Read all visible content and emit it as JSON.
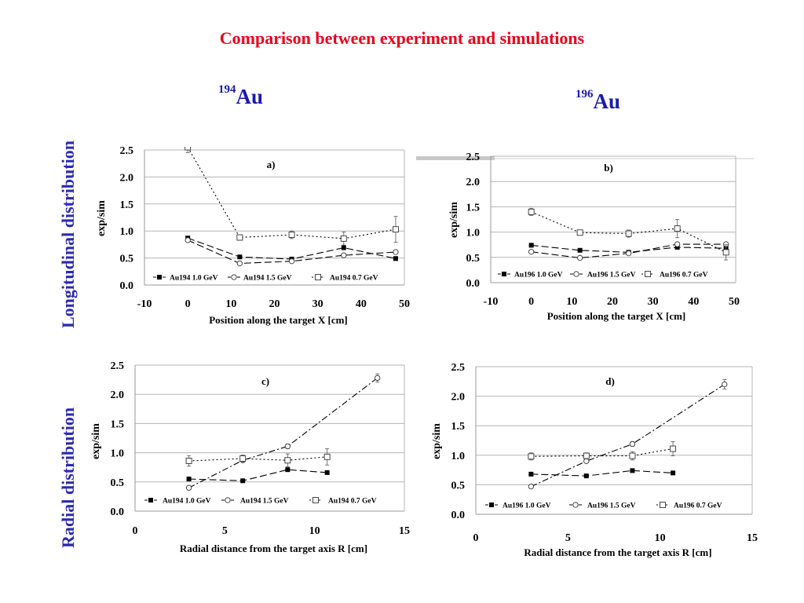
{
  "title": "Comparison between experiment and simulations",
  "isotopes": [
    {
      "mass": "194",
      "symbol": "Au"
    },
    {
      "mass": "196",
      "symbol": "Au"
    }
  ],
  "row_labels": {
    "top": "Longitudinal distribution",
    "bottom": "Radial distribution"
  },
  "chart_data": [
    {
      "id": "a",
      "type": "line",
      "panel_label": "a)",
      "ylabel": "exp/sim",
      "xlabel": "Position along the target X  [cm]",
      "xlim": [
        -10,
        50
      ],
      "ylim": [
        0,
        2.5
      ],
      "xticks": [
        "-10",
        "0",
        "10",
        "20",
        "30",
        "40",
        "50"
      ],
      "yticks": [
        "0.0",
        "0.5",
        "1.0",
        "1.5",
        "2.0",
        "2.5"
      ],
      "grid": true,
      "legend": "bottom",
      "series": [
        {
          "name": "Au194  1.0 GeV",
          "marker": "filled-square",
          "dash": "long-dash",
          "x": [
            0,
            12,
            24,
            36,
            48
          ],
          "y": [
            0.87,
            0.52,
            0.48,
            0.69,
            0.49
          ]
        },
        {
          "name": "Au194  1.5 GeV",
          "marker": "open-circle",
          "dash": "long-dash",
          "x": [
            0,
            12,
            24,
            36,
            48
          ],
          "y": [
            0.83,
            0.4,
            0.44,
            0.55,
            0.61
          ]
        },
        {
          "name": "Au194  0.7 GeV",
          "marker": "open-square",
          "dash": "dot",
          "x": [
            0,
            12,
            24,
            36,
            48
          ],
          "y": [
            2.55,
            0.88,
            0.93,
            0.86,
            1.03
          ],
          "err": [
            0.1,
            0.05,
            0.07,
            0.12,
            0.24
          ]
        }
      ]
    },
    {
      "id": "b",
      "type": "line",
      "panel_label": "b)",
      "ylabel": "exp/sim",
      "xlabel": "Position along the target X  [cm]",
      "xlim": [
        -10,
        50
      ],
      "ylim": [
        0,
        2.5
      ],
      "xticks": [
        "-10",
        "0",
        "10",
        "20",
        "30",
        "40",
        "50"
      ],
      "yticks": [
        "0.0",
        "0.5",
        "1.0",
        "1.5",
        "2.0",
        "2.5"
      ],
      "grid": true,
      "legend": "bottom",
      "series": [
        {
          "name": "Au196  1.0 GeV",
          "marker": "filled-square",
          "dash": "long-dash",
          "x": [
            0,
            12,
            24,
            36,
            48
          ],
          "y": [
            0.74,
            0.64,
            0.6,
            0.7,
            0.68
          ]
        },
        {
          "name": "Au196  1.5 GeV",
          "marker": "open-circle",
          "dash": "long-dash",
          "x": [
            0,
            12,
            24,
            36,
            48
          ],
          "y": [
            0.61,
            0.49,
            0.58,
            0.76,
            0.76
          ]
        },
        {
          "name": "Au196  0.7 GeV",
          "marker": "open-square",
          "dash": "dot",
          "x": [
            0,
            12,
            24,
            36,
            48
          ],
          "y": [
            1.4,
            0.99,
            0.97,
            1.07,
            0.6
          ],
          "err": [
            0.07,
            0.04,
            0.07,
            0.18,
            0.15
          ]
        }
      ]
    },
    {
      "id": "c",
      "type": "line",
      "panel_label": "c)",
      "ylabel": "exp/sim",
      "xlabel": "Radial distance from the target axis R  [cm]",
      "xlim": [
        0,
        15
      ],
      "ylim": [
        0,
        2.5
      ],
      "xticks": [
        "0",
        "5",
        "10",
        "15"
      ],
      "yticks": [
        "0.0",
        "0.5",
        "1.0",
        "1.5",
        "2.0",
        "2.5"
      ],
      "grid": true,
      "legend": "bottom",
      "series": [
        {
          "name": "Au194  1.0 GeV",
          "marker": "filled-square",
          "dash": "long-dash",
          "x": [
            3,
            6,
            8.5,
            10.7
          ],
          "y": [
            0.55,
            0.52,
            0.71,
            0.66
          ]
        },
        {
          "name": "Au194  1.5 GeV",
          "marker": "open-circle",
          "dash": "dash-dot",
          "x": [
            3,
            6,
            8.5,
            13.5
          ],
          "y": [
            0.4,
            0.87,
            1.11,
            2.28
          ],
          "err": [
            0.02,
            0.03,
            0.04,
            0.07
          ]
        },
        {
          "name": "Au194  0.7 GeV",
          "marker": "open-square",
          "dash": "dot",
          "x": [
            3,
            6,
            8.5,
            10.7
          ],
          "y": [
            0.86,
            0.9,
            0.87,
            0.93
          ],
          "err": [
            0.09,
            0.06,
            0.11,
            0.14
          ]
        }
      ]
    },
    {
      "id": "d",
      "type": "line",
      "panel_label": "d)",
      "ylabel": "exp/sim",
      "xlabel": "Radial distance from the target axis R  [cm]",
      "xlim": [
        0,
        15
      ],
      "ylim": [
        0,
        2.5
      ],
      "xticks": [
        "0",
        "5",
        "10",
        "15"
      ],
      "yticks": [
        "0.0",
        "0.5",
        "1.0",
        "1.5",
        "2.0",
        "2.5"
      ],
      "grid": true,
      "legend": "bottom",
      "series": [
        {
          "name": "Au196  1.0 GeV",
          "marker": "filled-square",
          "dash": "long-dash",
          "x": [
            3,
            6,
            8.5,
            10.7
          ],
          "y": [
            0.68,
            0.65,
            0.74,
            0.7
          ]
        },
        {
          "name": "Au196  1.5 GeV",
          "marker": "open-circle",
          "dash": "dash-dot",
          "x": [
            3,
            6,
            8.5,
            13.5
          ],
          "y": [
            0.47,
            0.9,
            1.19,
            2.2
          ],
          "err": [
            0.02,
            0.03,
            0.04,
            0.08
          ]
        },
        {
          "name": "Au196  0.7 GeV",
          "marker": "open-square",
          "dash": "dot",
          "x": [
            3,
            6,
            8.5,
            10.7
          ],
          "y": [
            0.98,
            0.99,
            0.99,
            1.11
          ],
          "err": [
            0.06,
            0.05,
            0.07,
            0.12
          ]
        }
      ]
    }
  ]
}
